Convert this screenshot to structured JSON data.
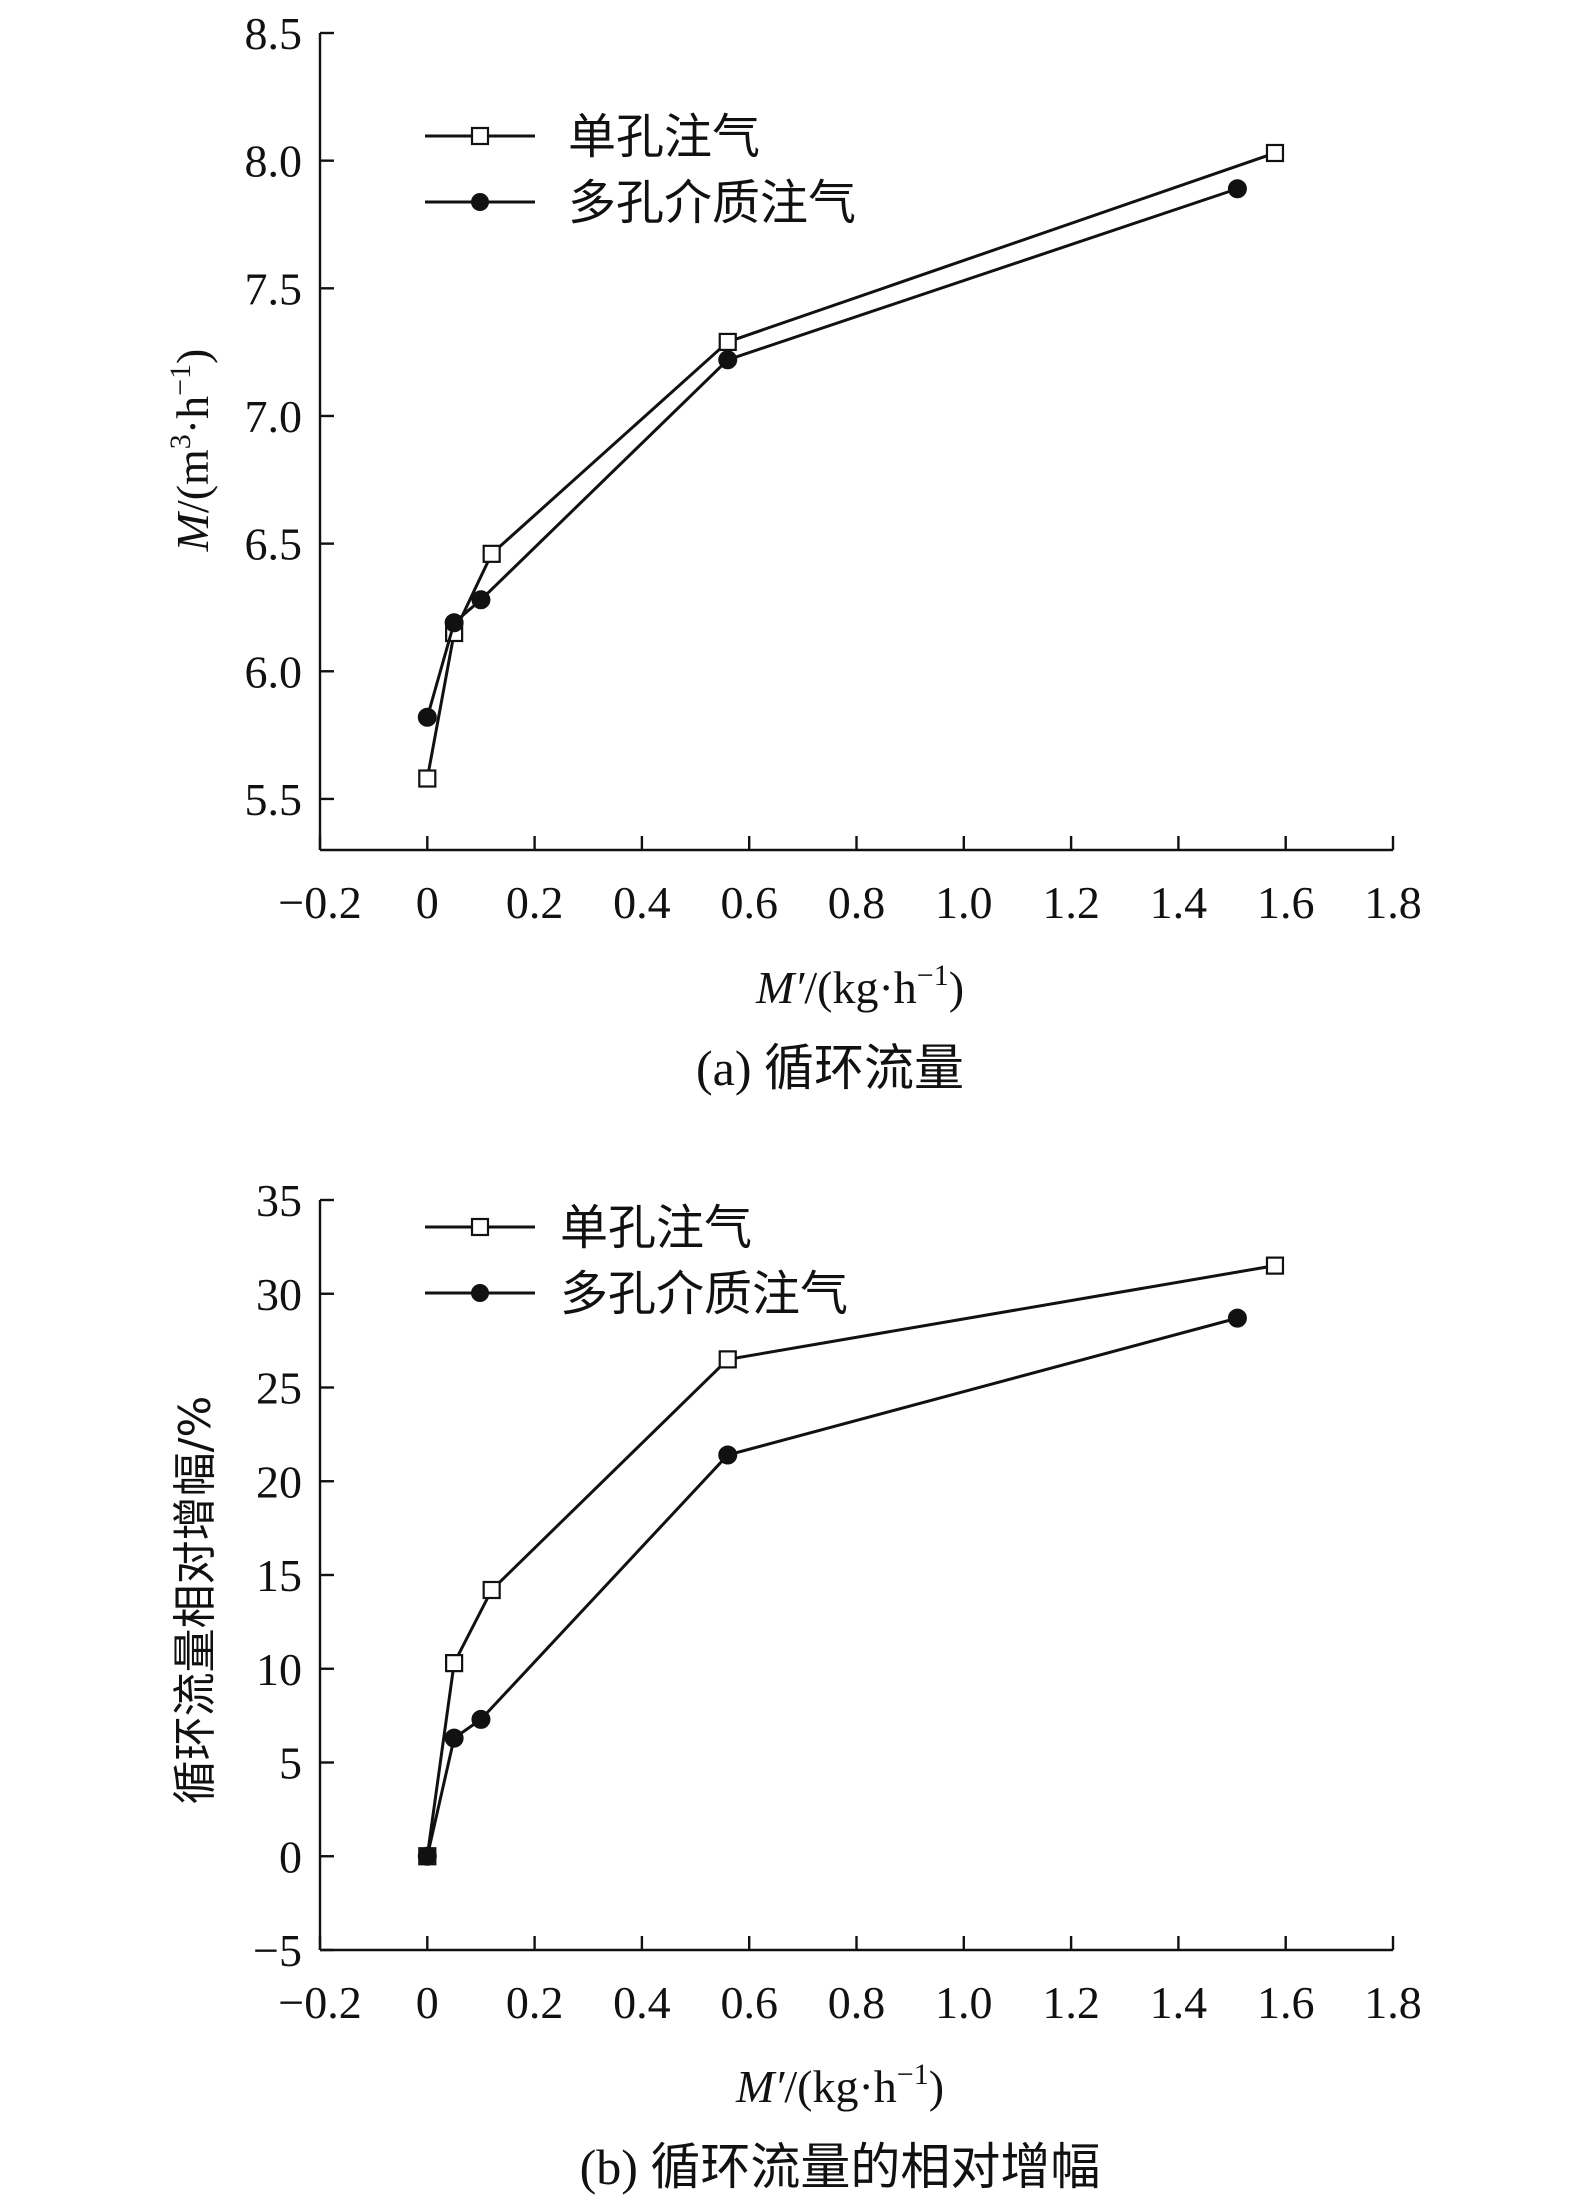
{
  "chart_data": [
    {
      "type": "line",
      "caption": "(a) 循环流量",
      "xlabel": "M′/(kg·h⁻¹)",
      "ylabel": "M/(m³·h⁻¹)",
      "xlim": [
        -0.2,
        1.8
      ],
      "ylim": [
        5.3,
        8.5
      ],
      "xticks": [
        -0.2,
        0,
        0.2,
        0.4,
        0.6,
        0.8,
        1.0,
        1.2,
        1.4,
        1.6,
        1.8
      ],
      "xtick_labels": [
        "−0.2",
        "0",
        "0.2",
        "0.4",
        "0.6",
        "0.8",
        "1.0",
        "1.2",
        "1.4",
        "1.6",
        "1.8"
      ],
      "yticks": [
        5.5,
        6.0,
        6.5,
        7.0,
        7.5,
        8.0,
        8.5
      ],
      "ytick_labels": [
        "5.5",
        "6.0",
        "6.5",
        "7.0",
        "7.5",
        "8.0",
        "8.5"
      ],
      "legend": "top-left",
      "series": [
        {
          "name": "单孔注气",
          "marker": "open-square",
          "x": [
            0,
            0.05,
            0.12,
            0.56,
            1.58
          ],
          "y": [
            5.58,
            6.15,
            6.46,
            7.29,
            8.03
          ]
        },
        {
          "name": "多孔介质注气",
          "marker": "filled-circle",
          "x": [
            0,
            0.05,
            0.1,
            0.56,
            1.51
          ],
          "y": [
            5.82,
            6.19,
            6.28,
            7.22,
            7.89
          ]
        }
      ]
    },
    {
      "type": "line",
      "caption": "(b) 循环流量的相对增幅",
      "xlabel": "M′/(kg·h⁻¹)",
      "ylabel": "循环流量相对增幅/%",
      "xlim": [
        -0.2,
        1.8
      ],
      "ylim": [
        -5,
        35
      ],
      "xticks": [
        -0.2,
        0,
        0.2,
        0.4,
        0.6,
        0.8,
        1.0,
        1.2,
        1.4,
        1.6,
        1.8
      ],
      "xtick_labels": [
        "−0.2",
        "0",
        "0.2",
        "0.4",
        "0.6",
        "0.8",
        "1.0",
        "1.2",
        "1.4",
        "1.6",
        "1.8"
      ],
      "yticks": [
        -5,
        0,
        5,
        10,
        15,
        20,
        25,
        30,
        35
      ],
      "ytick_labels": [
        "−5",
        "0",
        "5",
        "10",
        "15",
        "20",
        "25",
        "30",
        "35"
      ],
      "legend": "top-left",
      "series": [
        {
          "name": "单孔注气",
          "marker": "open-square",
          "x": [
            0,
            0.05,
            0.12,
            0.56,
            1.58
          ],
          "y": [
            0,
            10.3,
            14.2,
            26.5,
            31.5
          ]
        },
        {
          "name": "多孔介质注气",
          "marker": "filled-circle",
          "x": [
            0,
            0.05,
            0.1,
            0.56,
            1.51
          ],
          "y": [
            0,
            6.3,
            7.3,
            21.4,
            28.7
          ]
        }
      ]
    }
  ]
}
